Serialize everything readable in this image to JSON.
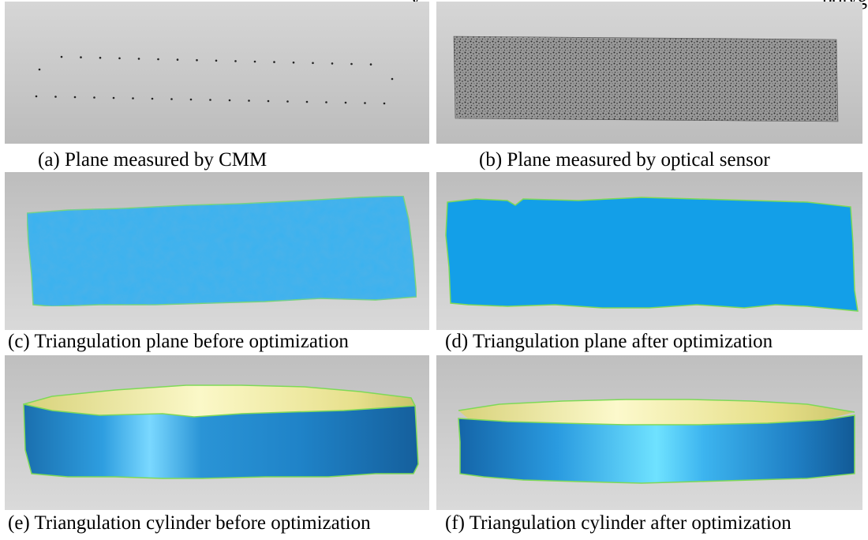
{
  "top_cut_text": {
    "left": "y",
    "right": "polyg"
  },
  "panels": [
    {
      "id": "a",
      "caption": "(a) Plane measured by CMM"
    },
    {
      "id": "b",
      "caption": "(b) Plane measured by optical sensor"
    },
    {
      "id": "c",
      "caption": "(c) Triangulation plane before optimization"
    },
    {
      "id": "d",
      "caption": "(d) Triangulation plane after optimization"
    },
    {
      "id": "e",
      "caption": "(e) Triangulation cylinder before optimization"
    },
    {
      "id": "f",
      "caption": "(f) Triangulation cylinder after optimization"
    }
  ],
  "colors": {
    "background_top": "#d4d4d4",
    "background_bottom": "#bdbdbd",
    "mesh_blue": "#3bb2f0",
    "mesh_blue_smooth": "#139fe8",
    "cylinder_inner": "#f5f0a0",
    "edge_green": "#7ed957"
  }
}
